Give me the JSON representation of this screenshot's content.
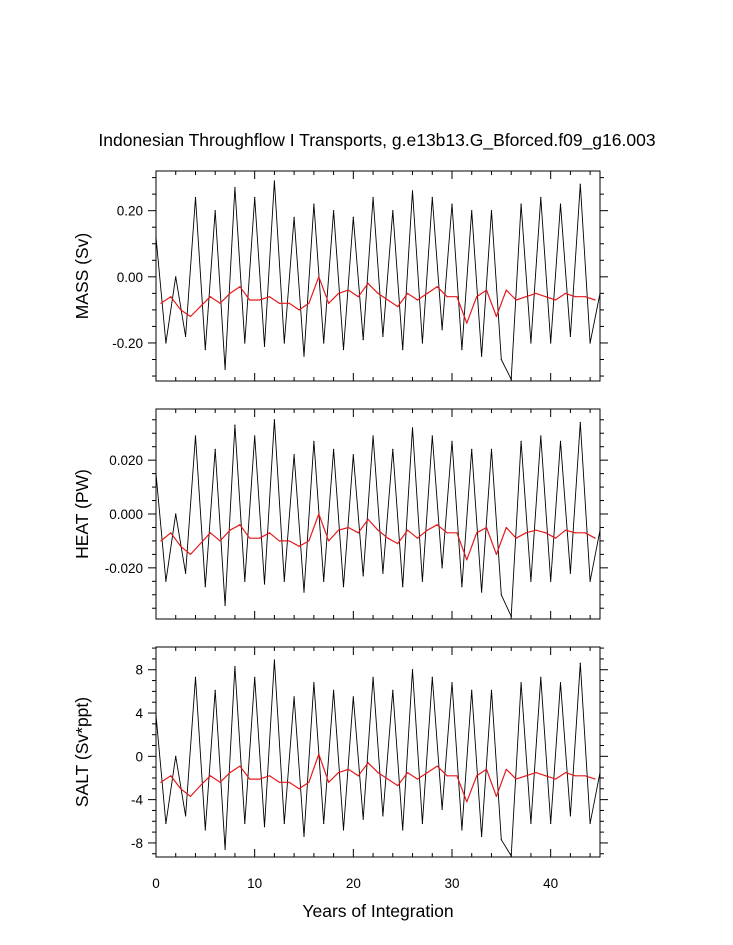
{
  "title": "Indonesian Throughflow I Transports, g.e13b13.G_Bforced.f09_g16.003",
  "xlabel": "Years of Integration",
  "x_ticks": [
    "0",
    "10",
    "20",
    "30",
    "40"
  ],
  "colors": {
    "monthly": "#000000",
    "annual": "#e41a1c",
    "axes": "#000000"
  },
  "chart_data": [
    {
      "type": "line",
      "ylabel": "MASS (Sv)",
      "xlim": [
        0,
        45
      ],
      "ylim": [
        -0.315,
        0.32
      ],
      "y_ticks": [
        0.2,
        0.0,
        -0.2
      ],
      "y_tick_labels": [
        "0.20",
        "0.00",
        "-0.20"
      ],
      "series": [
        {
          "style": "monthly",
          "x": [
            0,
            1,
            2,
            3,
            4,
            5,
            6,
            7,
            8,
            9,
            10,
            11,
            12,
            13,
            14,
            15,
            16,
            17,
            18,
            19,
            20,
            21,
            22,
            23,
            24,
            25,
            26,
            27,
            28,
            29,
            30,
            31,
            32,
            33,
            34,
            35,
            36,
            37,
            38,
            39,
            40,
            41,
            42,
            43,
            44,
            45
          ],
          "values": [
            0.12,
            -0.2,
            0.0,
            -0.18,
            0.24,
            -0.22,
            0.2,
            -0.28,
            0.27,
            -0.2,
            0.24,
            -0.21,
            0.29,
            -0.2,
            0.18,
            -0.24,
            0.22,
            -0.2,
            0.2,
            -0.22,
            0.18,
            -0.19,
            0.24,
            -0.18,
            0.2,
            -0.22,
            0.26,
            -0.2,
            0.24,
            -0.16,
            0.22,
            -0.22,
            0.2,
            -0.24,
            0.2,
            -0.25,
            -0.31,
            0.22,
            -0.2,
            0.24,
            -0.2,
            0.22,
            -0.18,
            0.28,
            -0.2,
            -0.05
          ]
        },
        {
          "style": "annual",
          "x": [
            0.5,
            1.5,
            2.5,
            3.5,
            4.5,
            5.5,
            6.5,
            7.5,
            8.5,
            9.5,
            10.5,
            11.5,
            12.5,
            13.5,
            14.5,
            15.5,
            16.5,
            17.5,
            18.5,
            19.5,
            20.5,
            21.5,
            22.5,
            23.5,
            24.5,
            25.5,
            26.5,
            27.5,
            28.5,
            29.5,
            30.5,
            31.5,
            32.5,
            33.5,
            34.5,
            35.5,
            36.5,
            37.5,
            38.5,
            39.5,
            40.5,
            41.5,
            42.5,
            43.5,
            44.5
          ],
          "values": [
            -0.08,
            -0.06,
            -0.1,
            -0.12,
            -0.09,
            -0.06,
            -0.08,
            -0.05,
            -0.03,
            -0.07,
            -0.07,
            -0.06,
            -0.08,
            -0.08,
            -0.1,
            -0.08,
            0.0,
            -0.08,
            -0.05,
            -0.04,
            -0.06,
            -0.02,
            -0.05,
            -0.07,
            -0.09,
            -0.05,
            -0.07,
            -0.05,
            -0.03,
            -0.06,
            -0.06,
            -0.14,
            -0.06,
            -0.04,
            -0.12,
            -0.04,
            -0.07,
            -0.06,
            -0.05,
            -0.06,
            -0.07,
            -0.05,
            -0.06,
            -0.06,
            -0.07
          ]
        }
      ]
    },
    {
      "type": "line",
      "ylabel": "HEAT (PW)",
      "xlim": [
        0,
        45
      ],
      "ylim": [
        -0.039,
        0.039
      ],
      "y_ticks": [
        0.02,
        0.0,
        -0.02
      ],
      "y_tick_labels": [
        "0.020",
        "0.000",
        "-0.020"
      ],
      "series": [
        {
          "style": "monthly",
          "x": [
            0,
            1,
            2,
            3,
            4,
            5,
            6,
            7,
            8,
            9,
            10,
            11,
            12,
            13,
            14,
            15,
            16,
            17,
            18,
            19,
            20,
            21,
            22,
            23,
            24,
            25,
            26,
            27,
            28,
            29,
            30,
            31,
            32,
            33,
            34,
            35,
            36,
            37,
            38,
            39,
            40,
            41,
            42,
            43,
            44,
            45
          ],
          "values": [
            0.015,
            -0.025,
            0.0,
            -0.022,
            0.029,
            -0.027,
            0.024,
            -0.034,
            0.033,
            -0.025,
            0.029,
            -0.026,
            0.035,
            -0.025,
            0.022,
            -0.029,
            0.027,
            -0.025,
            0.024,
            -0.027,
            0.022,
            -0.023,
            0.029,
            -0.022,
            0.024,
            -0.027,
            0.032,
            -0.025,
            0.029,
            -0.02,
            0.027,
            -0.027,
            0.024,
            -0.029,
            0.024,
            -0.03,
            -0.038,
            0.027,
            -0.025,
            0.029,
            -0.025,
            0.027,
            -0.022,
            0.034,
            -0.025,
            -0.006
          ]
        },
        {
          "style": "annual",
          "x": [
            0.5,
            1.5,
            2.5,
            3.5,
            4.5,
            5.5,
            6.5,
            7.5,
            8.5,
            9.5,
            10.5,
            11.5,
            12.5,
            13.5,
            14.5,
            15.5,
            16.5,
            17.5,
            18.5,
            19.5,
            20.5,
            21.5,
            22.5,
            23.5,
            24.5,
            25.5,
            26.5,
            27.5,
            28.5,
            29.5,
            30.5,
            31.5,
            32.5,
            33.5,
            34.5,
            35.5,
            36.5,
            37.5,
            38.5,
            39.5,
            40.5,
            41.5,
            42.5,
            43.5,
            44.5
          ],
          "values": [
            -0.01,
            -0.007,
            -0.012,
            -0.015,
            -0.011,
            -0.007,
            -0.01,
            -0.006,
            -0.004,
            -0.009,
            -0.009,
            -0.007,
            -0.01,
            -0.01,
            -0.012,
            -0.01,
            0.0,
            -0.01,
            -0.006,
            -0.005,
            -0.007,
            -0.002,
            -0.006,
            -0.009,
            -0.011,
            -0.006,
            -0.009,
            -0.006,
            -0.004,
            -0.007,
            -0.007,
            -0.017,
            -0.007,
            -0.005,
            -0.015,
            -0.005,
            -0.009,
            -0.007,
            -0.006,
            -0.007,
            -0.009,
            -0.006,
            -0.007,
            -0.007,
            -0.009
          ]
        }
      ]
    },
    {
      "type": "line",
      "ylabel": "SALT (Sv*ppt)",
      "xlim": [
        0,
        45
      ],
      "ylim": [
        -9.3,
        10.1
      ],
      "y_ticks": [
        8,
        4,
        0,
        -4,
        -8
      ],
      "y_tick_labels": [
        "8",
        "4",
        "0",
        "-4",
        "-8"
      ],
      "series": [
        {
          "style": "monthly",
          "x": [
            0,
            1,
            2,
            3,
            4,
            5,
            6,
            7,
            8,
            9,
            10,
            11,
            12,
            13,
            14,
            15,
            16,
            17,
            18,
            19,
            20,
            21,
            22,
            23,
            24,
            25,
            26,
            27,
            28,
            29,
            30,
            31,
            32,
            33,
            34,
            35,
            36,
            37,
            38,
            39,
            40,
            41,
            42,
            43,
            44,
            45
          ],
          "values": [
            3.8,
            -6.2,
            0.0,
            -5.5,
            7.3,
            -6.8,
            6.1,
            -8.6,
            8.3,
            -6.2,
            7.3,
            -6.5,
            8.9,
            -6.2,
            5.5,
            -7.4,
            6.8,
            -6.2,
            6.1,
            -6.8,
            5.5,
            -5.8,
            7.3,
            -5.5,
            6.1,
            -6.8,
            8.0,
            -6.2,
            7.3,
            -4.9,
            6.8,
            -6.8,
            6.1,
            -7.4,
            6.1,
            -7.7,
            -9.2,
            6.8,
            -6.2,
            7.3,
            -6.2,
            6.8,
            -5.5,
            8.6,
            -6.2,
            -1.5
          ]
        },
        {
          "style": "annual",
          "x": [
            0.5,
            1.5,
            2.5,
            3.5,
            4.5,
            5.5,
            6.5,
            7.5,
            8.5,
            9.5,
            10.5,
            11.5,
            12.5,
            13.5,
            14.5,
            15.5,
            16.5,
            17.5,
            18.5,
            19.5,
            20.5,
            21.5,
            22.5,
            23.5,
            24.5,
            25.5,
            26.5,
            27.5,
            28.5,
            29.5,
            30.5,
            31.5,
            32.5,
            33.5,
            34.5,
            35.5,
            36.5,
            37.5,
            38.5,
            39.5,
            40.5,
            41.5,
            42.5,
            43.5,
            44.5
          ],
          "values": [
            -2.4,
            -1.8,
            -3.0,
            -3.7,
            -2.7,
            -1.8,
            -2.4,
            -1.5,
            -0.9,
            -2.1,
            -2.1,
            -1.8,
            -2.4,
            -2.4,
            -3.0,
            -2.4,
            0.2,
            -2.4,
            -1.5,
            -1.2,
            -1.8,
            -0.6,
            -1.5,
            -2.1,
            -2.7,
            -1.5,
            -2.1,
            -1.5,
            -0.9,
            -1.8,
            -1.8,
            -4.2,
            -1.8,
            -1.2,
            -3.7,
            -1.2,
            -2.1,
            -1.8,
            -1.5,
            -1.8,
            -2.1,
            -1.5,
            -1.8,
            -1.8,
            -2.1
          ]
        }
      ]
    }
  ]
}
